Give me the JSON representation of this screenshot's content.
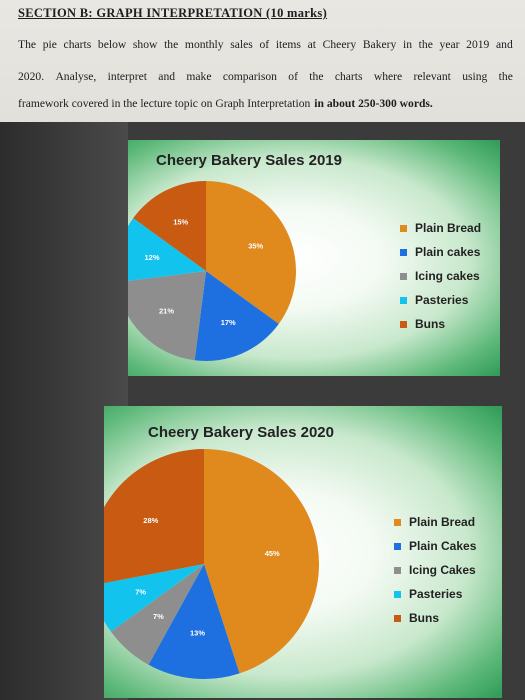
{
  "header": {
    "section_title": "SECTION B: GRAPH INTERPRETATION (10 marks)",
    "line1": [
      "The",
      "pie",
      "charts",
      "below",
      "show",
      "the",
      "monthly",
      "sales",
      "of",
      "items",
      "at",
      "Cheery",
      "Bakery",
      "in",
      "the",
      "year",
      "2019",
      "and"
    ],
    "line2": [
      "2020.",
      "Analyse,",
      "interpret",
      "and",
      "make",
      "comparison",
      "of",
      "the",
      "charts",
      "where",
      "relevant",
      "using",
      "the"
    ],
    "line3_plain": "framework covered in the lecture topic on Graph Interpretation",
    "line3_bold": "in about 250-300 words."
  },
  "colors": {
    "plain_bread": "#e08a1e",
    "plain_cakes": "#1e6fe0",
    "icing_cakes": "#8e8e8e",
    "pasteries": "#12c3ee",
    "buns": "#c85a12"
  },
  "chart_data": [
    {
      "type": "pie",
      "title": "Cheery Bakery Sales 2019",
      "categories": [
        "Plain Bread",
        "Plain cakes",
        "Icing cakes",
        "Pasteries",
        "Buns"
      ],
      "values": [
        35,
        17,
        21,
        12,
        15
      ],
      "labels": [
        "35%",
        "17%",
        "21%",
        "12%",
        "15%"
      ],
      "legend": "right"
    },
    {
      "type": "pie",
      "title": "Cheery Bakery Sales 2020",
      "categories": [
        "Plain Bread",
        "Plain Cakes",
        "Icing Cakes",
        "Pasteries",
        "Buns"
      ],
      "values": [
        45,
        13,
        7,
        7,
        28
      ],
      "labels": [
        "45%",
        "13%",
        "7%",
        "7%",
        "28%"
      ],
      "legend": "right"
    }
  ]
}
